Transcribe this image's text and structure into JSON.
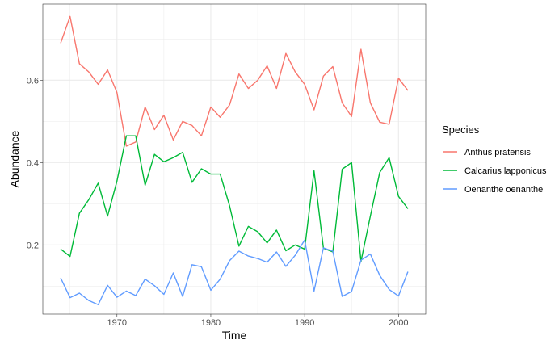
{
  "chart_data": {
    "type": "line",
    "xlabel": "Time",
    "ylabel": "Abundance",
    "xlim": [
      1962.1,
      2002.9
    ],
    "ylim": [
      0.032,
      0.785
    ],
    "x_ticks": [
      1970,
      1980,
      1990,
      2000
    ],
    "y_ticks": [
      0.2,
      0.4,
      0.6
    ],
    "y_tick_labels": [
      "0.2",
      "0.4",
      "0.6"
    ],
    "grid": true,
    "legend": {
      "title": "Species",
      "position": "right"
    },
    "x": [
      1964,
      1965,
      1966,
      1967,
      1968,
      1969,
      1970,
      1971,
      1972,
      1973,
      1974,
      1975,
      1976,
      1977,
      1978,
      1979,
      1980,
      1981,
      1982,
      1983,
      1984,
      1985,
      1986,
      1987,
      1988,
      1989,
      1990,
      1991,
      1992,
      1993,
      1994,
      1995,
      1996,
      1997,
      1998,
      1999,
      2000,
      2001
    ],
    "series": [
      {
        "name": "Anthus pratensis",
        "color": "#F8766D",
        "values": [
          0.69,
          0.755,
          0.64,
          0.62,
          0.59,
          0.625,
          0.57,
          0.44,
          0.45,
          0.535,
          0.48,
          0.515,
          0.455,
          0.5,
          0.49,
          0.465,
          0.535,
          0.51,
          0.54,
          0.615,
          0.58,
          0.6,
          0.635,
          0.58,
          0.665,
          0.62,
          0.59,
          0.528,
          0.61,
          0.633,
          0.545,
          0.512,
          0.675,
          0.545,
          0.498,
          0.493,
          0.605,
          0.575
        ]
      },
      {
        "name": "Calcarius lapponicus",
        "color": "#00BA38",
        "values": [
          0.19,
          0.172,
          0.277,
          0.31,
          0.35,
          0.27,
          0.355,
          0.465,
          0.465,
          0.345,
          0.42,
          0.402,
          0.412,
          0.425,
          0.352,
          0.385,
          0.372,
          0.372,
          0.295,
          0.197,
          0.245,
          0.232,
          0.205,
          0.236,
          0.186,
          0.2,
          0.19,
          0.38,
          0.192,
          0.183,
          0.384,
          0.4,
          0.16,
          0.27,
          0.376,
          0.412,
          0.318,
          0.288
        ]
      },
      {
        "name": "Oenanthe oenanthe",
        "color": "#619CFF",
        "values": [
          0.12,
          0.072,
          0.083,
          0.065,
          0.055,
          0.102,
          0.073,
          0.088,
          0.077,
          0.117,
          0.101,
          0.08,
          0.132,
          0.075,
          0.152,
          0.147,
          0.09,
          0.117,
          0.162,
          0.185,
          0.173,
          0.167,
          0.158,
          0.183,
          0.148,
          0.175,
          0.212,
          0.088,
          0.193,
          0.185,
          0.075,
          0.087,
          0.163,
          0.178,
          0.126,
          0.092,
          0.076,
          0.135
        ]
      }
    ]
  }
}
